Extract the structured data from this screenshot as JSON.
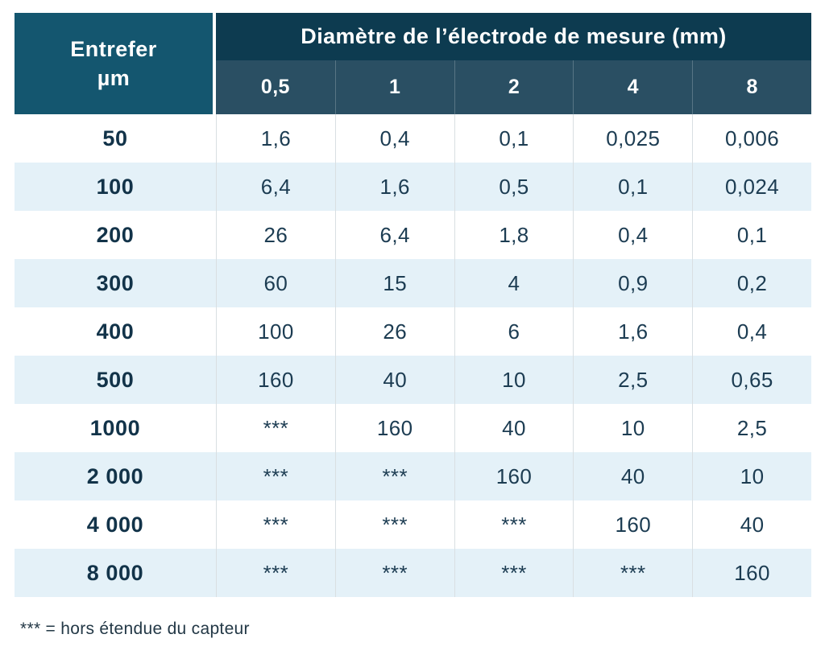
{
  "table": {
    "corner_header": {
      "line1": "Entrefer",
      "line2": "µm"
    },
    "group_header": "Diamètre de l’électrode de mesure (mm)",
    "column_headers": [
      "0,5",
      "1",
      "2",
      "4",
      "8"
    ],
    "rows": [
      {
        "gap": "50",
        "values": [
          "1,6",
          "0,4",
          "0,1",
          "0,025",
          "0,006"
        ]
      },
      {
        "gap": "100",
        "values": [
          "6,4",
          "1,6",
          "0,5",
          "0,1",
          "0,024"
        ]
      },
      {
        "gap": "200",
        "values": [
          "26",
          "6,4",
          "1,8",
          "0,4",
          "0,1"
        ]
      },
      {
        "gap": "300",
        "values": [
          "60",
          "15",
          "4",
          "0,9",
          "0,2"
        ]
      },
      {
        "gap": "400",
        "values": [
          "100",
          "26",
          "6",
          "1,6",
          "0,4"
        ]
      },
      {
        "gap": "500",
        "values": [
          "160",
          "40",
          "10",
          "2,5",
          "0,65"
        ]
      },
      {
        "gap": "1000",
        "values": [
          "***",
          "160",
          "40",
          "10",
          "2,5"
        ]
      },
      {
        "gap": "2 000",
        "values": [
          "***",
          "***",
          "160",
          "40",
          "10"
        ]
      },
      {
        "gap": "4 000",
        "values": [
          "***",
          "***",
          "***",
          "160",
          "40"
        ]
      },
      {
        "gap": "8 000",
        "values": [
          "***",
          "***",
          "***",
          "***",
          "160"
        ]
      }
    ]
  },
  "footnote": "*** = hors étendue du capteur",
  "colors": {
    "group_header_bg": "#0d3b50",
    "column_header_bg": "#2a4f63",
    "corner_bg": "#14566f",
    "alt_row_bg": "#e4f1f8",
    "header_text": "#ffffff",
    "row_header_text": "#123349",
    "body_text": "#1c3c52",
    "divider": "#d9dfe2",
    "footnote_text": "#233846"
  }
}
